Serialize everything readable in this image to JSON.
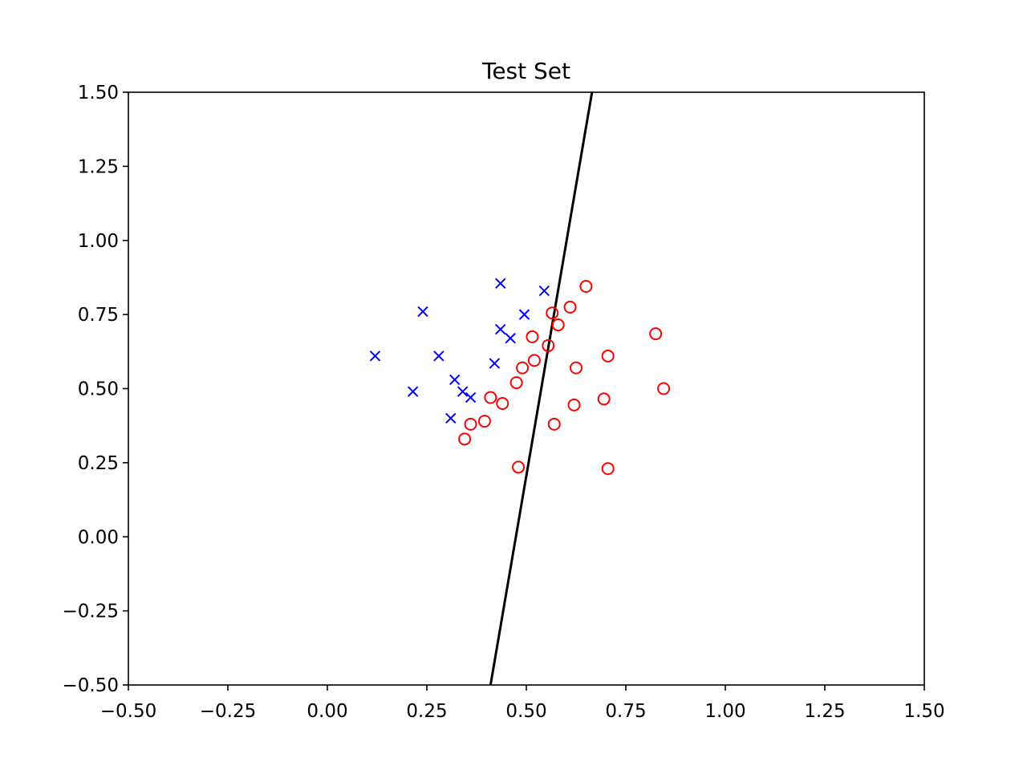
{
  "chart_data": {
    "type": "scatter",
    "title": "Test Set",
    "xlabel": "",
    "ylabel": "",
    "xlim": [
      -0.5,
      1.5
    ],
    "ylim": [
      -0.5,
      1.5
    ],
    "xticks": [
      "−0.50",
      "−0.25",
      "0.00",
      "0.25",
      "0.50",
      "0.75",
      "1.00",
      "1.25",
      "1.50"
    ],
    "yticks": [
      "−0.50",
      "−0.25",
      "0.00",
      "0.25",
      "0.50",
      "0.75",
      "1.00",
      "1.25",
      "1.50"
    ],
    "xtick_values": [
      -0.5,
      -0.25,
      0,
      0.25,
      0.5,
      0.75,
      1.0,
      1.25,
      1.5
    ],
    "ytick_values": [
      -0.5,
      -0.25,
      0,
      0.25,
      0.5,
      0.75,
      1.0,
      1.25,
      1.5
    ],
    "grid": false,
    "series": [
      {
        "marker": "x",
        "color": "#0000ff",
        "points": [
          [
            0.12,
            0.61
          ],
          [
            0.24,
            0.76
          ],
          [
            0.215,
            0.49
          ],
          [
            0.28,
            0.61
          ],
          [
            0.32,
            0.53
          ],
          [
            0.34,
            0.49
          ],
          [
            0.31,
            0.4
          ],
          [
            0.36,
            0.47
          ],
          [
            0.42,
            0.585
          ],
          [
            0.435,
            0.7
          ],
          [
            0.435,
            0.855
          ],
          [
            0.46,
            0.67
          ],
          [
            0.495,
            0.75
          ],
          [
            0.545,
            0.83
          ]
        ]
      },
      {
        "marker": "o",
        "color": "#ff0000",
        "points": [
          [
            0.345,
            0.33
          ],
          [
            0.36,
            0.38
          ],
          [
            0.395,
            0.39
          ],
          [
            0.41,
            0.47
          ],
          [
            0.44,
            0.45
          ],
          [
            0.475,
            0.52
          ],
          [
            0.49,
            0.57
          ],
          [
            0.515,
            0.675
          ],
          [
            0.52,
            0.595
          ],
          [
            0.555,
            0.645
          ],
          [
            0.565,
            0.755
          ],
          [
            0.58,
            0.715
          ],
          [
            0.57,
            0.38
          ],
          [
            0.48,
            0.235
          ],
          [
            0.61,
            0.775
          ],
          [
            0.625,
            0.57
          ],
          [
            0.62,
            0.445
          ],
          [
            0.65,
            0.845
          ],
          [
            0.695,
            0.465
          ],
          [
            0.705,
            0.61
          ],
          [
            0.705,
            0.23
          ],
          [
            0.825,
            0.685
          ],
          [
            0.845,
            0.5
          ]
        ]
      }
    ],
    "line": {
      "color": "#000000",
      "points": [
        [
          0.41,
          -0.5
        ],
        [
          0.665,
          1.5
        ]
      ]
    }
  }
}
